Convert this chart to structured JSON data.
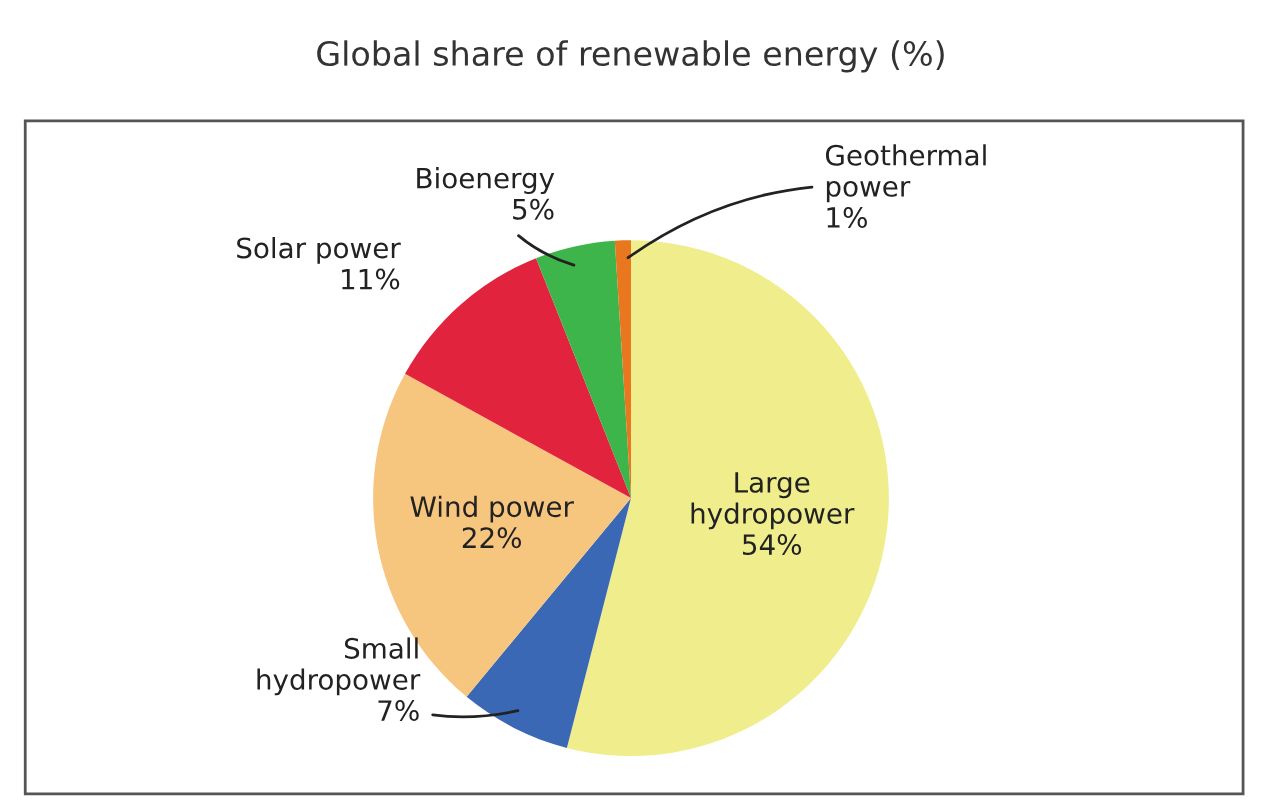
{
  "chart_data": {
    "type": "pie",
    "title": "Global share of renewable energy (%)",
    "categories": [
      "Large\nhydropower",
      "Small\nhydropower",
      "Wind power",
      "Solar power",
      "Bioenergy",
      "Geothermal\npower"
    ],
    "values": [
      54,
      7,
      22,
      11,
      5,
      1
    ],
    "colors": [
      "#f0ee8c",
      "#3b68b5",
      "#f6c67f",
      "#e2233e",
      "#3db54a",
      "#e8771f"
    ],
    "value_labels": [
      "54%",
      "7%",
      "22%",
      "11%",
      "5%",
      "1%"
    ]
  }
}
